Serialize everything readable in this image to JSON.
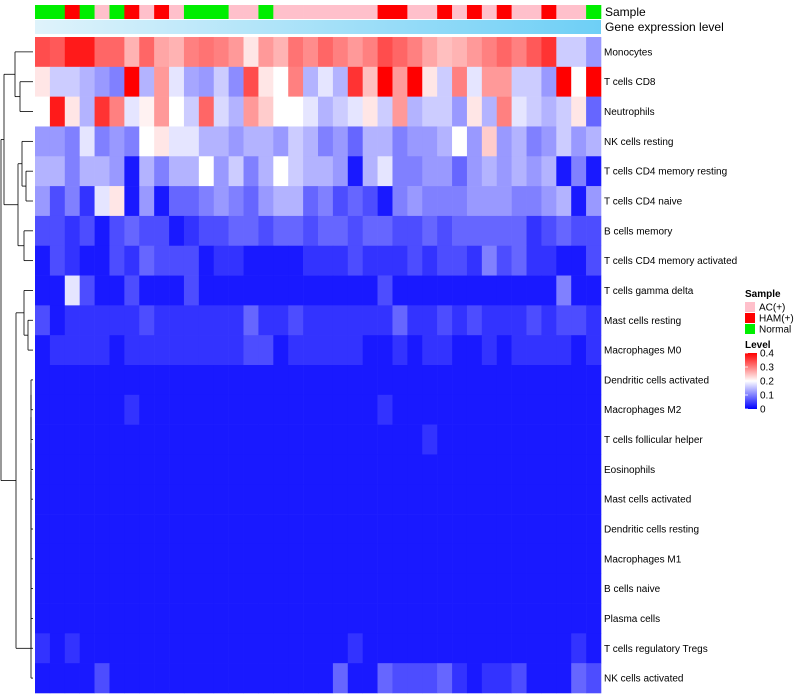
{
  "chart_data": {
    "type": "heatmap",
    "title": "",
    "annotation_labels": {
      "sample": "Sample",
      "expression": "Gene expression level"
    },
    "row_labels": [
      "Monocytes",
      "T cells CD8",
      "Neutrophils",
      "NK cells resting",
      "T cells CD4 memory resting",
      "T cells CD4 naive",
      "B cells memory",
      "T cells CD4 memory activated",
      "T cells gamma delta",
      "Mast cells resting",
      "Macrophages M0",
      "Dendritic cells activated",
      "Macrophages M2",
      "T cells follicular helper",
      "Eosinophils",
      "Mast cells activated",
      "Dendritic cells resting",
      "Macrophages M1",
      "B cells naive",
      "Plasma cells",
      "T cells regulatory  Tregs",
      "NK cells activated"
    ],
    "column_samples": [
      "Normal",
      "Normal",
      "HAM(+)",
      "Normal",
      "AC(+)",
      "Normal",
      "HAM(+)",
      "AC(+)",
      "HAM(+)",
      "AC(+)",
      "Normal",
      "Normal",
      "Normal",
      "AC(+)",
      "AC(+)",
      "Normal",
      "AC(+)",
      "AC(+)",
      "AC(+)",
      "AC(+)",
      "AC(+)",
      "AC(+)",
      "AC(+)",
      "HAM(+)",
      "HAM(+)",
      "AC(+)",
      "AC(+)",
      "HAM(+)",
      "AC(+)",
      "HAM(+)",
      "AC(+)",
      "HAM(+)",
      "AC(+)",
      "AC(+)",
      "HAM(+)",
      "AC(+)",
      "AC(+)",
      "Normal"
    ],
    "expression_bar": "low-to-high gradient",
    "values": [
      [
        0.34,
        0.33,
        0.38,
        0.38,
        0.32,
        0.32,
        0.26,
        0.32,
        0.27,
        0.26,
        0.3,
        0.31,
        0.3,
        0.28,
        0.22,
        0.28,
        0.26,
        0.31,
        0.29,
        0.32,
        0.3,
        0.28,
        0.3,
        0.34,
        0.32,
        0.3,
        0.27,
        0.25,
        0.26,
        0.28,
        0.3,
        0.32,
        0.3,
        0.33,
        0.36,
        0.16,
        0.16,
        0.12
      ],
      [
        0.22,
        0.16,
        0.16,
        0.14,
        0.12,
        0.1,
        0.4,
        0.14,
        0.28,
        0.18,
        0.13,
        0.12,
        0.16,
        0.11,
        0.34,
        0.22,
        0.2,
        0.3,
        0.14,
        0.18,
        0.14,
        0.36,
        0.25,
        0.4,
        0.28,
        0.4,
        0.22,
        0.16,
        0.3,
        0.18,
        0.28,
        0.28,
        0.16,
        0.16,
        0.12,
        0.4,
        0.2,
        0.4
      ],
      [
        0.2,
        0.38,
        0.22,
        0.14,
        0.36,
        0.3,
        0.18,
        0.21,
        0.28,
        0.2,
        0.16,
        0.32,
        0.17,
        0.14,
        0.28,
        0.24,
        0.2,
        0.2,
        0.18,
        0.14,
        0.16,
        0.18,
        0.22,
        0.16,
        0.28,
        0.14,
        0.16,
        0.16,
        0.12,
        0.22,
        0.14,
        0.3,
        0.18,
        0.16,
        0.14,
        0.16,
        0.22,
        0.08
      ],
      [
        0.12,
        0.12,
        0.1,
        0.18,
        0.1,
        0.12,
        0.1,
        0.2,
        0.22,
        0.18,
        0.18,
        0.14,
        0.14,
        0.12,
        0.14,
        0.14,
        0.12,
        0.16,
        0.14,
        0.1,
        0.12,
        0.08,
        0.14,
        0.14,
        0.1,
        0.12,
        0.12,
        0.14,
        0.2,
        0.12,
        0.24,
        0.12,
        0.14,
        0.1,
        0.12,
        0.16,
        0.12,
        0.14
      ],
      [
        0.14,
        0.14,
        0.1,
        0.14,
        0.14,
        0.12,
        0.02,
        0.14,
        0.1,
        0.14,
        0.14,
        0.2,
        0.12,
        0.16,
        0.1,
        0.14,
        0.2,
        0.16,
        0.14,
        0.14,
        0.12,
        0.02,
        0.14,
        0.18,
        0.1,
        0.1,
        0.12,
        0.12,
        0.08,
        0.12,
        0.14,
        0.12,
        0.14,
        0.12,
        0.14,
        0.02,
        0.1,
        0.02
      ],
      [
        0.12,
        0.06,
        0.1,
        0.04,
        0.18,
        0.22,
        0.02,
        0.12,
        0.02,
        0.08,
        0.08,
        0.1,
        0.12,
        0.1,
        0.08,
        0.12,
        0.14,
        0.14,
        0.08,
        0.1,
        0.06,
        0.08,
        0.06,
        0.02,
        0.1,
        0.12,
        0.1,
        0.1,
        0.1,
        0.12,
        0.12,
        0.12,
        0.1,
        0.1,
        0.12,
        0.14,
        0.02,
        0.12
      ],
      [
        0.06,
        0.06,
        0.04,
        0.06,
        0.02,
        0.06,
        0.08,
        0.06,
        0.06,
        0.02,
        0.04,
        0.06,
        0.06,
        0.08,
        0.08,
        0.06,
        0.08,
        0.08,
        0.06,
        0.08,
        0.08,
        0.06,
        0.08,
        0.08,
        0.06,
        0.06,
        0.08,
        0.06,
        0.08,
        0.08,
        0.08,
        0.08,
        0.08,
        0.04,
        0.06,
        0.08,
        0.06,
        0.06
      ],
      [
        0.02,
        0.06,
        0.04,
        0.02,
        0.02,
        0.06,
        0.04,
        0.08,
        0.06,
        0.06,
        0.06,
        0.02,
        0.04,
        0.04,
        0.02,
        0.02,
        0.02,
        0.02,
        0.04,
        0.04,
        0.04,
        0.06,
        0.04,
        0.04,
        0.04,
        0.06,
        0.04,
        0.06,
        0.06,
        0.04,
        0.1,
        0.06,
        0.08,
        0.04,
        0.04,
        0.02,
        0.02,
        0.06
      ],
      [
        0.02,
        0.02,
        0.18,
        0.06,
        0.02,
        0.02,
        0.06,
        0.02,
        0.02,
        0.02,
        0.06,
        0.02,
        0.02,
        0.02,
        0.02,
        0.02,
        0.02,
        0.02,
        0.02,
        0.02,
        0.02,
        0.02,
        0.02,
        0.06,
        0.02,
        0.02,
        0.02,
        0.02,
        0.02,
        0.02,
        0.02,
        0.02,
        0.02,
        0.02,
        0.02,
        0.1,
        0.02,
        0.02
      ],
      [
        0.06,
        0.02,
        0.04,
        0.04,
        0.04,
        0.04,
        0.04,
        0.06,
        0.04,
        0.04,
        0.04,
        0.04,
        0.04,
        0.04,
        0.08,
        0.04,
        0.04,
        0.06,
        0.04,
        0.04,
        0.04,
        0.04,
        0.04,
        0.04,
        0.08,
        0.04,
        0.04,
        0.06,
        0.04,
        0.06,
        0.04,
        0.04,
        0.04,
        0.06,
        0.04,
        0.06,
        0.06,
        0.04
      ],
      [
        0.02,
        0.04,
        0.04,
        0.04,
        0.04,
        0.02,
        0.04,
        0.04,
        0.04,
        0.04,
        0.04,
        0.04,
        0.04,
        0.04,
        0.06,
        0.06,
        0.02,
        0.04,
        0.04,
        0.04,
        0.04,
        0.04,
        0.02,
        0.02,
        0.04,
        0.02,
        0.04,
        0.04,
        0.02,
        0.02,
        0.04,
        0.02,
        0.04,
        0.04,
        0.04,
        0.04,
        0.02,
        0.04
      ],
      [
        0.02,
        0.02,
        0.02,
        0.02,
        0.02,
        0.02,
        0.02,
        0.02,
        0.02,
        0.02,
        0.02,
        0.02,
        0.02,
        0.02,
        0.02,
        0.02,
        0.02,
        0.02,
        0.02,
        0.02,
        0.02,
        0.02,
        0.02,
        0.02,
        0.02,
        0.02,
        0.02,
        0.02,
        0.02,
        0.02,
        0.02,
        0.02,
        0.02,
        0.02,
        0.02,
        0.02,
        0.02,
        0.02
      ],
      [
        0.02,
        0.02,
        0.02,
        0.02,
        0.02,
        0.02,
        0.04,
        0.02,
        0.02,
        0.02,
        0.02,
        0.02,
        0.02,
        0.02,
        0.02,
        0.02,
        0.02,
        0.02,
        0.02,
        0.02,
        0.02,
        0.02,
        0.02,
        0.04,
        0.02,
        0.02,
        0.02,
        0.02,
        0.02,
        0.02,
        0.02,
        0.02,
        0.02,
        0.02,
        0.02,
        0.02,
        0.02,
        0.02
      ],
      [
        0.02,
        0.02,
        0.02,
        0.02,
        0.02,
        0.02,
        0.02,
        0.02,
        0.02,
        0.02,
        0.02,
        0.02,
        0.02,
        0.02,
        0.02,
        0.02,
        0.02,
        0.02,
        0.02,
        0.02,
        0.02,
        0.02,
        0.02,
        0.02,
        0.02,
        0.02,
        0.04,
        0.02,
        0.02,
        0.02,
        0.02,
        0.02,
        0.02,
        0.02,
        0.02,
        0.02,
        0.02,
        0.02
      ],
      [
        0.02,
        0.02,
        0.02,
        0.02,
        0.02,
        0.02,
        0.02,
        0.02,
        0.02,
        0.02,
        0.02,
        0.02,
        0.02,
        0.02,
        0.02,
        0.02,
        0.02,
        0.02,
        0.02,
        0.02,
        0.02,
        0.02,
        0.02,
        0.02,
        0.02,
        0.02,
        0.02,
        0.02,
        0.02,
        0.02,
        0.02,
        0.02,
        0.02,
        0.02,
        0.02,
        0.02,
        0.02,
        0.02
      ],
      [
        0.02,
        0.02,
        0.02,
        0.02,
        0.02,
        0.02,
        0.02,
        0.02,
        0.02,
        0.02,
        0.02,
        0.02,
        0.02,
        0.02,
        0.02,
        0.02,
        0.02,
        0.02,
        0.02,
        0.02,
        0.02,
        0.02,
        0.02,
        0.02,
        0.02,
        0.02,
        0.02,
        0.02,
        0.02,
        0.02,
        0.02,
        0.02,
        0.02,
        0.02,
        0.02,
        0.02,
        0.02,
        0.02
      ],
      [
        0.02,
        0.02,
        0.02,
        0.02,
        0.02,
        0.02,
        0.02,
        0.02,
        0.02,
        0.02,
        0.02,
        0.02,
        0.02,
        0.02,
        0.02,
        0.02,
        0.02,
        0.02,
        0.02,
        0.02,
        0.02,
        0.02,
        0.02,
        0.02,
        0.02,
        0.02,
        0.02,
        0.02,
        0.02,
        0.02,
        0.02,
        0.02,
        0.02,
        0.02,
        0.02,
        0.02,
        0.02,
        0.02
      ],
      [
        0.02,
        0.02,
        0.02,
        0.02,
        0.02,
        0.02,
        0.02,
        0.02,
        0.02,
        0.02,
        0.02,
        0.02,
        0.02,
        0.02,
        0.02,
        0.02,
        0.02,
        0.02,
        0.02,
        0.02,
        0.02,
        0.02,
        0.02,
        0.02,
        0.02,
        0.02,
        0.02,
        0.02,
        0.02,
        0.02,
        0.02,
        0.02,
        0.02,
        0.02,
        0.02,
        0.02,
        0.02,
        0.02
      ],
      [
        0.02,
        0.02,
        0.02,
        0.02,
        0.02,
        0.02,
        0.02,
        0.02,
        0.02,
        0.02,
        0.02,
        0.02,
        0.02,
        0.02,
        0.02,
        0.02,
        0.02,
        0.02,
        0.02,
        0.02,
        0.02,
        0.02,
        0.02,
        0.02,
        0.02,
        0.02,
        0.02,
        0.02,
        0.02,
        0.02,
        0.02,
        0.02,
        0.02,
        0.02,
        0.02,
        0.02,
        0.02,
        0.02
      ],
      [
        0.02,
        0.02,
        0.02,
        0.02,
        0.02,
        0.02,
        0.02,
        0.02,
        0.02,
        0.02,
        0.02,
        0.02,
        0.02,
        0.02,
        0.02,
        0.02,
        0.02,
        0.02,
        0.02,
        0.02,
        0.02,
        0.02,
        0.02,
        0.02,
        0.02,
        0.02,
        0.02,
        0.02,
        0.02,
        0.02,
        0.02,
        0.02,
        0.02,
        0.02,
        0.02,
        0.02,
        0.02,
        0.02
      ],
      [
        0.04,
        0.02,
        0.04,
        0.02,
        0.02,
        0.02,
        0.02,
        0.02,
        0.02,
        0.02,
        0.02,
        0.02,
        0.02,
        0.02,
        0.02,
        0.02,
        0.02,
        0.02,
        0.02,
        0.02,
        0.02,
        0.04,
        0.02,
        0.02,
        0.02,
        0.02,
        0.02,
        0.02,
        0.02,
        0.02,
        0.02,
        0.02,
        0.02,
        0.02,
        0.02,
        0.02,
        0.04,
        0.02
      ],
      [
        0.02,
        0.02,
        0.02,
        0.02,
        0.06,
        0.02,
        0.02,
        0.02,
        0.02,
        0.02,
        0.02,
        0.02,
        0.02,
        0.02,
        0.02,
        0.02,
        0.02,
        0.02,
        0.02,
        0.02,
        0.08,
        0.02,
        0.02,
        0.08,
        0.06,
        0.06,
        0.06,
        0.08,
        0.04,
        0.02,
        0.04,
        0.04,
        0.06,
        0.02,
        0.02,
        0.02,
        0.08,
        0.06
      ]
    ],
    "legend": {
      "sample_title": "Sample",
      "sample_entries": [
        {
          "label": "AC(+)",
          "color": "#ffc0cb"
        },
        {
          "label": "HAM(+)",
          "color": "#ff0000"
        },
        {
          "label": "Normal",
          "color": "#00ee00"
        }
      ],
      "level_title": "Level",
      "level_ticks": [
        "0.4",
        "0.3",
        "0.2",
        "0.1",
        "0"
      ],
      "level_range": [
        0,
        0.4
      ]
    },
    "colors": {
      "low": "#0000ff",
      "mid": "#ffffff",
      "high": "#ff0000",
      "expression_low": "#dff3fb",
      "expression_high": "#6ecff6"
    }
  }
}
